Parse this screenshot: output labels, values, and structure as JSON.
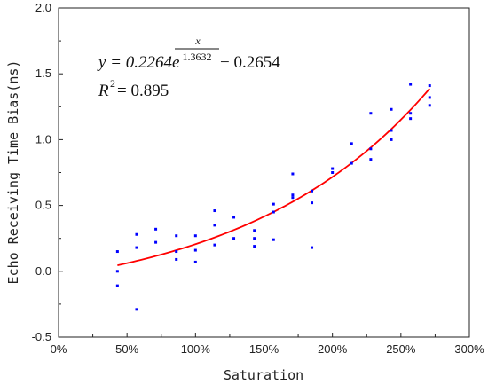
{
  "chart_data": {
    "type": "scatter",
    "xlabel": "Saturation",
    "ylabel": "Echo Receiving Time Bias(ns)",
    "xlim": [
      0,
      300
    ],
    "ylim": [
      -0.5,
      2.0
    ],
    "x_ticks": [
      0,
      50,
      100,
      150,
      200,
      250,
      300
    ],
    "x_tick_labels": [
      "0%",
      "50%",
      "100%",
      "150%",
      "200%",
      "250%",
      "300%"
    ],
    "y_ticks": [
      -0.5,
      0.0,
      0.5,
      1.0,
      1.5,
      2.0
    ],
    "y_tick_labels": [
      "-0.5",
      "0.0",
      "0.5",
      "1.0",
      "1.5",
      "2.0"
    ],
    "grid": false,
    "points": [
      {
        "x": 43,
        "y": 0.15
      },
      {
        "x": 43,
        "y": 0.0
      },
      {
        "x": 43,
        "y": -0.11
      },
      {
        "x": 57,
        "y": 0.28
      },
      {
        "x": 57,
        "y": 0.18
      },
      {
        "x": 57,
        "y": -0.29
      },
      {
        "x": 71,
        "y": 0.32
      },
      {
        "x": 71,
        "y": 0.22
      },
      {
        "x": 86,
        "y": 0.27
      },
      {
        "x": 86,
        "y": 0.15
      },
      {
        "x": 86,
        "y": 0.09
      },
      {
        "x": 100,
        "y": 0.27
      },
      {
        "x": 100,
        "y": 0.16
      },
      {
        "x": 100,
        "y": 0.07
      },
      {
        "x": 114,
        "y": 0.46
      },
      {
        "x": 114,
        "y": 0.35
      },
      {
        "x": 114,
        "y": 0.2
      },
      {
        "x": 128,
        "y": 0.41
      },
      {
        "x": 128,
        "y": 0.25
      },
      {
        "x": 143,
        "y": 0.31
      },
      {
        "x": 143,
        "y": 0.25
      },
      {
        "x": 143,
        "y": 0.19
      },
      {
        "x": 157,
        "y": 0.51
      },
      {
        "x": 157,
        "y": 0.45
      },
      {
        "x": 157,
        "y": 0.24
      },
      {
        "x": 171,
        "y": 0.74
      },
      {
        "x": 171,
        "y": 0.58
      },
      {
        "x": 171,
        "y": 0.56
      },
      {
        "x": 185,
        "y": 0.61
      },
      {
        "x": 185,
        "y": 0.52
      },
      {
        "x": 185,
        "y": 0.18
      },
      {
        "x": 200,
        "y": 0.78
      },
      {
        "x": 200,
        "y": 0.75
      },
      {
        "x": 214,
        "y": 0.97
      },
      {
        "x": 214,
        "y": 0.82
      },
      {
        "x": 228,
        "y": 1.2
      },
      {
        "x": 228,
        "y": 0.93
      },
      {
        "x": 228,
        "y": 0.85
      },
      {
        "x": 243,
        "y": 1.23
      },
      {
        "x": 243,
        "y": 1.07
      },
      {
        "x": 243,
        "y": 1.0
      },
      {
        "x": 257,
        "y": 1.42
      },
      {
        "x": 257,
        "y": 1.2
      },
      {
        "x": 257,
        "y": 1.16
      },
      {
        "x": 271,
        "y": 1.41
      },
      {
        "x": 271,
        "y": 1.32
      },
      {
        "x": 271,
        "y": 1.26
      }
    ],
    "fit": {
      "a": 0.2264,
      "b": 1.3632,
      "c": -0.2654,
      "x_range": [
        43,
        271
      ],
      "equation": {
        "lhs": "y = 0.2264e",
        "exp_numerator": "x",
        "exp_denominator": "1.3632",
        "tail": " − 0.2654"
      },
      "r2": {
        "label": "R",
        "sup": "2",
        "value": " = 0.895"
      }
    },
    "colors": {
      "points": "#0000ff",
      "fit": "#ff0000",
      "axis": "#222222"
    }
  }
}
